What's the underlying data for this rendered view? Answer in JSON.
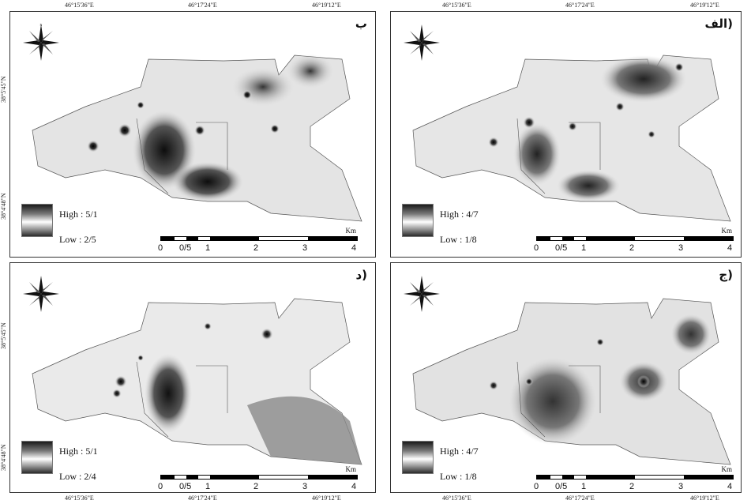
{
  "top_coords": [
    "46°15'36\"E",
    "46°17'24\"E",
    "46°19'12\"E",
    "46°15'36\"E",
    "46°17'24\"E",
    "46°19'12\"E"
  ],
  "bottom_coords": [
    "46°15'36\"E",
    "46°17'24\"E",
    "46°19'12\"E",
    "46°15'36\"E",
    "46°17'24\"E",
    "46°19'12\"E"
  ],
  "side_coords": [
    "38°5'45\"N",
    "38°4'48\"N",
    "38°5'45\"N",
    "38°4'48\"N"
  ],
  "panels": [
    {
      "label": "ب",
      "legend_high": "High : 5/1",
      "legend_low": "Low : 2/5"
    },
    {
      "label": "الف)",
      "legend_high": "High : 4/7",
      "legend_low": "Low : 1/8"
    },
    {
      "label": "د)",
      "legend_high": "High : 5/1",
      "legend_low": "Low : 2/4"
    },
    {
      "label": "ج)",
      "legend_high": "High : 4/7",
      "legend_low": "Low : 1/8"
    }
  ],
  "scale": {
    "unit": "Km",
    "ticks": [
      "0",
      "0/5",
      "1",
      "2",
      "3",
      "4"
    ]
  },
  "north_arrow": {
    "letters": {
      "n": "N",
      "s": "S",
      "e": "E",
      "w": "W"
    }
  },
  "colors": {
    "high": "#1a1a1a",
    "low": "#ffffff",
    "border": "#333333"
  }
}
